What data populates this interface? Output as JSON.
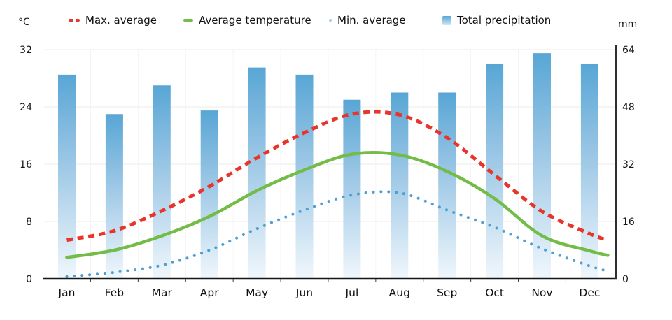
{
  "legend": {
    "max_label": "Max. average",
    "avg_label": "Average temperature",
    "min_label": "Min. average",
    "precip_label": "Total precipitation"
  },
  "axes": {
    "left_unit": "°C",
    "right_unit": "mm",
    "left_ticks": [
      0,
      8,
      16,
      24,
      32
    ],
    "right_ticks": [
      0,
      16,
      32,
      48,
      64
    ]
  },
  "chart_data": {
    "type": "mixed-bar-line",
    "title": "",
    "categories": [
      "Jan",
      "Feb",
      "Mar",
      "Apr",
      "May",
      "Jun",
      "Jul",
      "Aug",
      "Sep",
      "Oct",
      "Nov",
      "Dec"
    ],
    "ylim_left": [
      0,
      32
    ],
    "ylim_right": [
      0,
      64
    ],
    "grid": true,
    "legend_position": "top",
    "series": [
      {
        "name": "Max. average",
        "type": "line",
        "style": "dashed",
        "axis": "left",
        "unit": "°C",
        "color_key": "max_line",
        "values": [
          5.4,
          6.7,
          9.5,
          12.9,
          16.9,
          20.4,
          23.0,
          22.9,
          19.7,
          14.5,
          9.4,
          6.3
        ]
      },
      {
        "name": "Average temperature",
        "type": "line",
        "style": "solid",
        "axis": "left",
        "unit": "°C",
        "color_key": "avg_line",
        "values": [
          3.0,
          4.0,
          6.0,
          8.7,
          12.3,
          15.2,
          17.4,
          17.3,
          15.0,
          11.2,
          6.0,
          3.9
        ]
      },
      {
        "name": "Min. average",
        "type": "line",
        "style": "dotted",
        "axis": "left",
        "unit": "°C",
        "color_key": "min_line",
        "values": [
          0.3,
          0.9,
          1.9,
          4.0,
          7.0,
          9.6,
          11.7,
          12.0,
          9.6,
          7.2,
          4.2,
          1.8
        ]
      },
      {
        "name": "Total precipitation",
        "type": "bar",
        "axis": "right",
        "unit": "mm",
        "color_key": "bar_top",
        "values": [
          57,
          46,
          54,
          47,
          59,
          57,
          50,
          52,
          52,
          60,
          63,
          60
        ]
      }
    ]
  },
  "colors": {
    "max_line": "#e8352c",
    "avg_line": "#74bc48",
    "min_line": "#4f9fd2",
    "bar_top": "#58a6d5",
    "bar_mid": "#9ac6e5",
    "bar_bottom": "#f0f7fc",
    "grid": "#ebebeb",
    "axis": "#1f1f1f",
    "text": "#111111"
  }
}
